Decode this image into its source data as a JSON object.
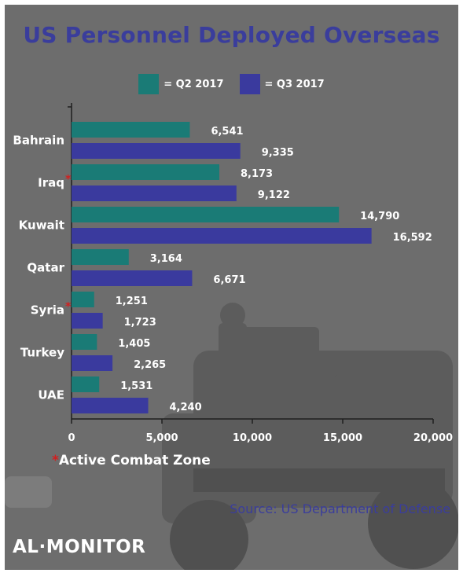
{
  "title": "US Personnel Deployed Overseas",
  "legend": {
    "q2_label": "= Q2 2017",
    "q3_label": "= Q3 2017"
  },
  "colors": {
    "q2": "#1a7b76",
    "q3": "#3a3a9e",
    "title": "#3a3d9c",
    "star": "#d21f1f",
    "background": "#6d6d6d"
  },
  "chart_data": {
    "type": "bar",
    "orientation": "horizontal",
    "title": "US Personnel Deployed Overseas",
    "categories": [
      "Bahrain",
      "Iraq",
      "Kuwait",
      "Qatar",
      "Syria",
      "Turkey",
      "UAE"
    ],
    "starred": [
      false,
      true,
      false,
      false,
      true,
      false,
      false
    ],
    "series": [
      {
        "name": "Q2 2017",
        "values": [
          6541,
          8173,
          14790,
          3164,
          1251,
          1405,
          1531
        ],
        "labels": [
          "6,541",
          "8,173",
          "14,790",
          "3,164",
          "1,251",
          "1,405",
          "1,531"
        ]
      },
      {
        "name": "Q3 2017",
        "values": [
          9335,
          9122,
          16592,
          6671,
          1723,
          2265,
          4240
        ],
        "labels": [
          "9,335",
          "9,122",
          "16,592",
          "6,671",
          "1,723",
          "2,265",
          "4,240"
        ]
      }
    ],
    "xlim": [
      0,
      20000
    ],
    "xticks": [
      0,
      5000,
      10000,
      15000,
      20000
    ],
    "xtick_labels": [
      "0",
      "5,000",
      "10,000",
      "15,000",
      "20,000"
    ],
    "grid": false,
    "legend_position": "top"
  },
  "footnote": {
    "star": "*",
    "text": "Active Combat Zone"
  },
  "source": "Source: US Department of Defense",
  "brand": "AL·MONITOR"
}
